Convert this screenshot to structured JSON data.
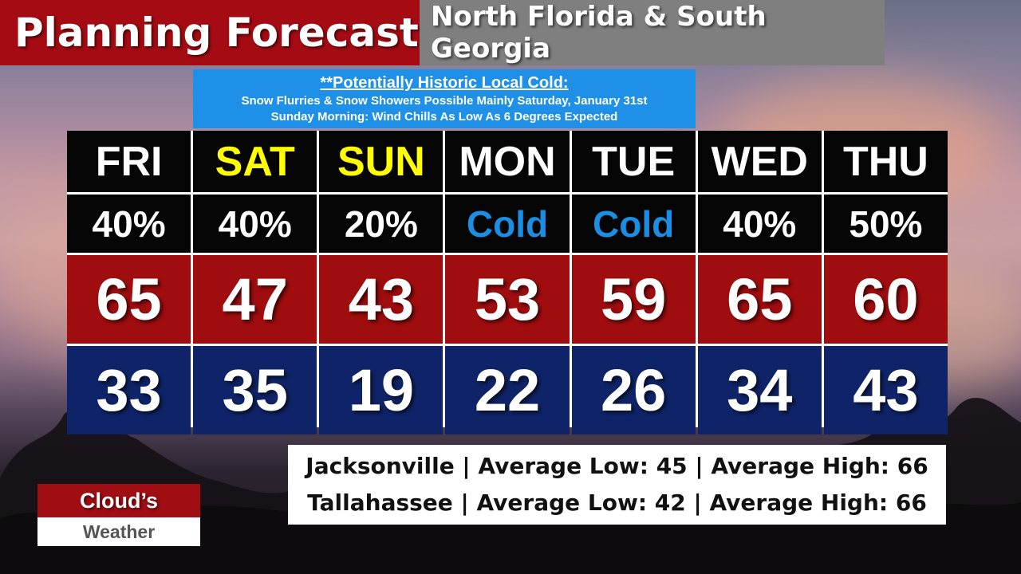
{
  "header": {
    "title": "Planning Forecast",
    "region": "North Florida & South Georgia"
  },
  "alert": {
    "title": "**Potentially Historic Local Cold:",
    "line1": "Snow Flurries & Snow Showers Possible Mainly Saturday, January 31st",
    "line2": "Sunday Morning: Wind Chills As Low As 6 Degrees Expected"
  },
  "forecast": [
    {
      "day": "FRI",
      "precip": "40%",
      "high": "65",
      "low": "33"
    },
    {
      "day": "SAT",
      "precip": "40%",
      "high": "47",
      "low": "35"
    },
    {
      "day": "SUN",
      "precip": "20%",
      "high": "43",
      "low": "19"
    },
    {
      "day": "MON",
      "precip": "Cold",
      "high": "53",
      "low": "22"
    },
    {
      "day": "TUE",
      "precip": "Cold",
      "high": "59",
      "low": "26"
    },
    {
      "day": "WED",
      "precip": "40%",
      "high": "65",
      "low": "34"
    },
    {
      "day": "THU",
      "precip": "50%",
      "high": "60",
      "low": "43"
    }
  ],
  "averages": {
    "jacksonville": "Jacksonville | Average Low: 45 | Average High: 66",
    "tallahassee": "Tallahassee | Average Low: 42 | Average High: 66"
  },
  "logo": {
    "top": "Cloud’s",
    "bottom": "Weather"
  },
  "colors": {
    "title_red": "#a50b12",
    "region_gray": "#7f7f7f",
    "alert_blue": "#1e90e8",
    "high_red": "#a00d0f",
    "low_navy": "#0f2468",
    "weekend_yellow": "#ffff00",
    "cold_blue": "#1a8ee3"
  }
}
